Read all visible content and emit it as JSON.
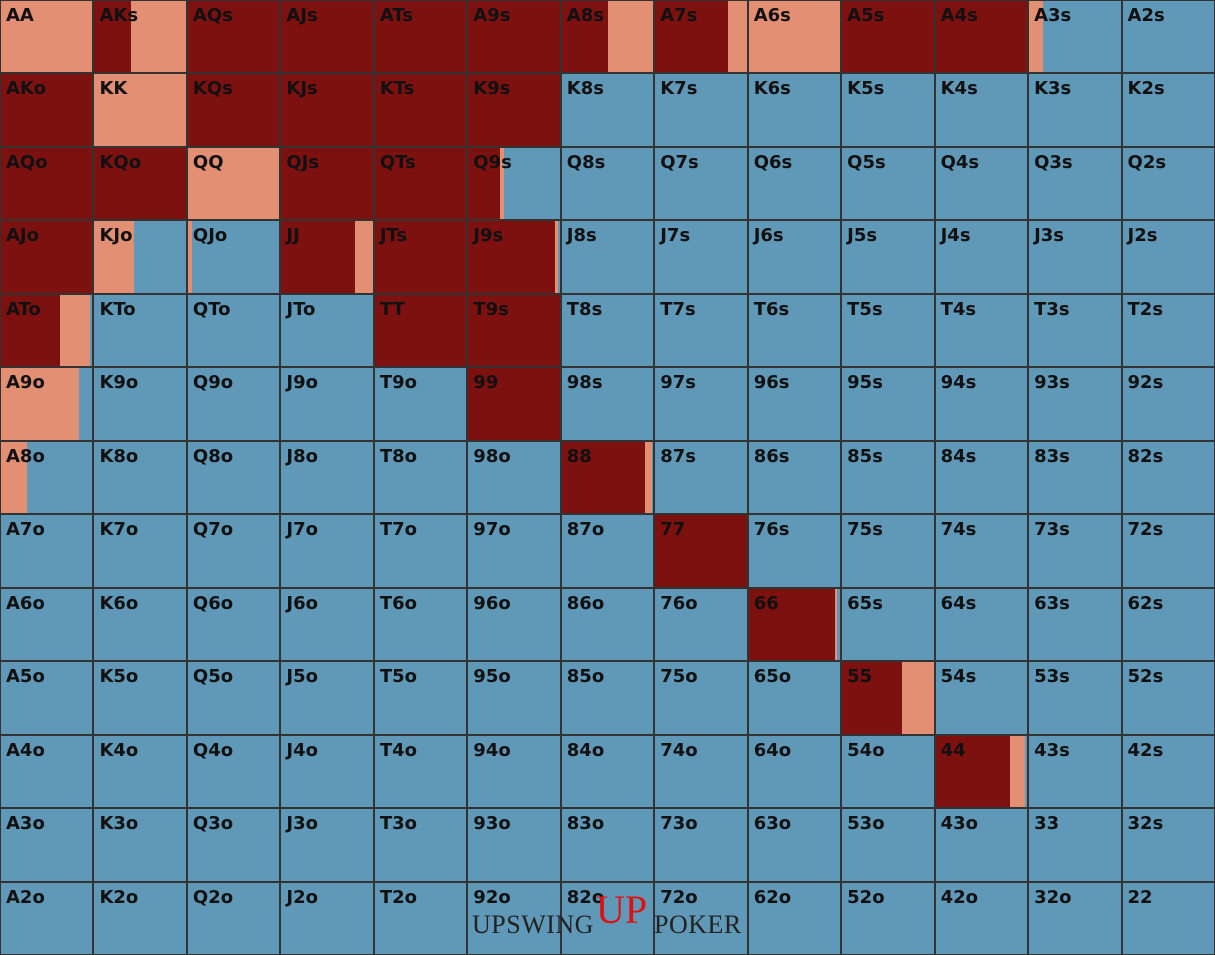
{
  "grid": {
    "hands": [
      [
        "AA",
        "AKs",
        "AQs",
        "AJs",
        "ATs",
        "A9s",
        "A8s",
        "A7s",
        "A6s",
        "A5s",
        "A4s",
        "A3s",
        "A2s"
      ],
      [
        "AKo",
        "KK",
        "KQs",
        "KJs",
        "KTs",
        "K9s",
        "K8s",
        "K7s",
        "K6s",
        "K5s",
        "K4s",
        "K3s",
        "K2s"
      ],
      [
        "AQo",
        "KQo",
        "QQ",
        "QJs",
        "QTs",
        "Q9s",
        "Q8s",
        "Q7s",
        "Q6s",
        "Q5s",
        "Q4s",
        "Q3s",
        "Q2s"
      ],
      [
        "AJo",
        "KJo",
        "QJo",
        "JJ",
        "JTs",
        "J9s",
        "J8s",
        "J7s",
        "J6s",
        "J5s",
        "J4s",
        "J3s",
        "J2s"
      ],
      [
        "ATo",
        "KTo",
        "QTo",
        "JTo",
        "TT",
        "T9s",
        "T8s",
        "T7s",
        "T6s",
        "T5s",
        "T4s",
        "T3s",
        "T2s"
      ],
      [
        "A9o",
        "K9o",
        "Q9o",
        "J9o",
        "T9o",
        "99",
        "98s",
        "97s",
        "96s",
        "95s",
        "94s",
        "93s",
        "92s"
      ],
      [
        "A8o",
        "K8o",
        "Q8o",
        "J8o",
        "T8o",
        "98o",
        "88",
        "87s",
        "86s",
        "85s",
        "84s",
        "83s",
        "82s"
      ],
      [
        "A7o",
        "K7o",
        "Q7o",
        "J7o",
        "T7o",
        "97o",
        "87o",
        "77",
        "76s",
        "75s",
        "74s",
        "73s",
        "72s"
      ],
      [
        "A6o",
        "K6o",
        "Q6o",
        "J6o",
        "T6o",
        "96o",
        "86o",
        "76o",
        "66",
        "65s",
        "64s",
        "63s",
        "62s"
      ],
      [
        "A5o",
        "K5o",
        "Q5o",
        "J5o",
        "T5o",
        "95o",
        "85o",
        "75o",
        "65o",
        "55",
        "54s",
        "53s",
        "52s"
      ],
      [
        "A4o",
        "K4o",
        "Q4o",
        "J4o",
        "T4o",
        "94o",
        "84o",
        "74o",
        "64o",
        "54o",
        "44",
        "43s",
        "42s"
      ],
      [
        "A3o",
        "K3o",
        "Q3o",
        "J3o",
        "T3o",
        "93o",
        "83o",
        "73o",
        "63o",
        "53o",
        "43o",
        "33",
        "32s"
      ],
      [
        "A2o",
        "K2o",
        "Q2o",
        "J2o",
        "T2o",
        "92o",
        "82o",
        "72o",
        "62o",
        "52o",
        "42o",
        "32o",
        "22"
      ]
    ],
    "raise": [
      [
        0,
        40,
        100,
        100,
        100,
        100,
        51,
        80,
        0,
        100,
        100,
        0,
        0
      ],
      [
        100,
        0,
        100,
        100,
        100,
        100,
        0,
        0,
        0,
        0,
        0,
        0,
        0
      ],
      [
        100,
        100,
        0,
        100,
        100,
        35,
        0,
        0,
        0,
        0,
        0,
        0,
        0
      ],
      [
        100,
        0,
        0,
        81,
        100,
        95,
        0,
        0,
        0,
        0,
        0,
        0,
        0
      ],
      [
        65,
        0,
        0,
        0,
        100,
        100,
        0,
        0,
        0,
        0,
        0,
        0,
        0
      ],
      [
        0,
        0,
        0,
        0,
        0,
        100,
        0,
        0,
        0,
        0,
        0,
        0,
        0
      ],
      [
        0,
        0,
        0,
        0,
        0,
        0,
        91,
        0,
        0,
        0,
        0,
        0,
        0
      ],
      [
        0,
        0,
        0,
        0,
        0,
        0,
        0,
        100,
        0,
        0,
        0,
        0,
        0
      ],
      [
        0,
        0,
        0,
        0,
        0,
        0,
        0,
        0,
        94,
        0,
        0,
        0,
        0
      ],
      [
        0,
        0,
        0,
        0,
        0,
        0,
        0,
        0,
        0,
        65,
        0,
        0,
        0
      ],
      [
        0,
        0,
        0,
        0,
        0,
        0,
        0,
        0,
        0,
        0,
        81,
        0,
        0
      ],
      [
        0,
        0,
        0,
        0,
        0,
        0,
        0,
        0,
        0,
        0,
        0,
        0,
        0
      ],
      [
        0,
        0,
        0,
        0,
        0,
        0,
        0,
        0,
        0,
        0,
        0,
        0,
        0
      ]
    ],
    "call": [
      [
        100,
        60,
        0,
        0,
        0,
        0,
        49,
        20,
        100,
        0,
        0,
        15,
        0
      ],
      [
        0,
        100,
        0,
        0,
        0,
        0,
        0,
        0,
        0,
        0,
        0,
        0,
        0
      ],
      [
        0,
        0,
        100,
        0,
        0,
        4,
        0,
        0,
        0,
        0,
        0,
        0,
        0
      ],
      [
        0,
        43,
        5,
        19,
        0,
        3,
        0,
        0,
        0,
        0,
        0,
        0,
        0
      ],
      [
        32,
        0,
        0,
        0,
        0,
        0,
        0,
        0,
        0,
        0,
        0,
        0,
        0
      ],
      [
        85,
        0,
        0,
        0,
        0,
        0,
        0,
        0,
        0,
        0,
        0,
        0,
        0
      ],
      [
        28,
        0,
        0,
        0,
        0,
        0,
        8,
        0,
        0,
        0,
        0,
        0,
        0
      ],
      [
        0,
        0,
        0,
        0,
        0,
        0,
        0,
        0,
        0,
        0,
        0,
        0,
        0
      ],
      [
        0,
        0,
        0,
        0,
        0,
        0,
        0,
        0,
        3,
        0,
        0,
        0,
        0
      ],
      [
        0,
        0,
        0,
        0,
        0,
        0,
        0,
        0,
        0,
        35,
        0,
        0,
        0
      ],
      [
        0,
        0,
        0,
        0,
        0,
        0,
        0,
        0,
        0,
        0,
        17,
        0,
        0
      ],
      [
        0,
        0,
        0,
        0,
        0,
        0,
        0,
        0,
        0,
        0,
        0,
        0,
        0
      ],
      [
        0,
        0,
        0,
        0,
        0,
        0,
        0,
        0,
        0,
        0,
        0,
        0,
        0
      ]
    ],
    "colors": {
      "raise": "#7d1110",
      "call": "#e38f74",
      "fold": "#6098b8"
    }
  },
  "logo": {
    "left": "UPSWING",
    "mark": "UP",
    "right": "POKER"
  }
}
